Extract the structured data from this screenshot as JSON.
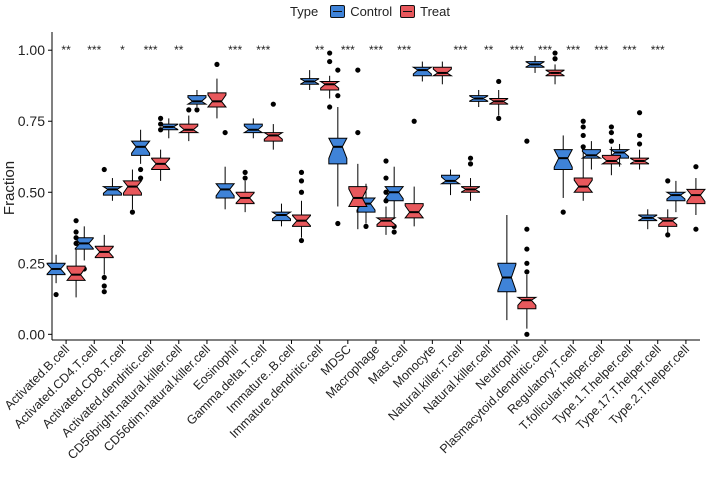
{
  "chart_data": {
    "type": "boxplot",
    "title": "",
    "xlabel": "",
    "ylabel": "Fraction",
    "ylim": [
      -0.02,
      1.05
    ],
    "yticks": [
      "0.00",
      "0.25",
      "0.50",
      "0.75",
      "1.00"
    ],
    "legend": {
      "title": "Type",
      "position": "top",
      "entries": [
        {
          "name": "Control",
          "color": "#3f83d8"
        },
        {
          "name": "Treat",
          "color": "#e8585c"
        }
      ]
    },
    "categories": [
      "Activated.B.cell",
      "Activated.CD4.T.cell",
      "Activated.CD8.T.cell",
      "Activated.dendritic.cell",
      "CD56bright.natural.killer.cell",
      "CD56dim.natural.killer.cell",
      "Eosinophil",
      "Gamma.delta.T.cell",
      "Immature..B.cell",
      "Immature.dendritic.cell",
      "MDSC",
      "Macrophage",
      "Mast.cell",
      "Monocyte",
      "Natural.killer.T.cell",
      "Natural.killer.cell",
      "Neutrophil",
      "Plasmacytoid.dendritic.cell",
      "Regulatory.T.cell",
      "T.follicular.helper.cell",
      "Type.1.T.helper.cell",
      "Type.17.T.helper.cell",
      "Type.2.T.helper.cell"
    ],
    "significance": [
      "**",
      "***",
      "*",
      "***",
      "**",
      "",
      "***",
      "***",
      "",
      "**",
      "***",
      "***",
      "***",
      "",
      "***",
      "**",
      "***",
      "***",
      "***",
      "***",
      "***",
      "***",
      ""
    ],
    "series": [
      {
        "name": "Control",
        "boxes": [
          {
            "min": 0.18,
            "q1": 0.21,
            "median": 0.23,
            "q3": 0.25,
            "max": 0.28,
            "outliers": [
              0.14
            ]
          },
          {
            "min": 0.26,
            "q1": 0.3,
            "median": 0.32,
            "q3": 0.34,
            "max": 0.38,
            "outliers": [
              0.23
            ]
          },
          {
            "min": 0.47,
            "q1": 0.49,
            "median": 0.51,
            "q3": 0.52,
            "max": 0.55,
            "outliers": []
          },
          {
            "min": 0.6,
            "q1": 0.63,
            "median": 0.66,
            "q3": 0.68,
            "max": 0.72,
            "outliers": [
              0.55,
              0.58
            ]
          },
          {
            "min": 0.69,
            "q1": 0.72,
            "median": 0.73,
            "q3": 0.74,
            "max": 0.76,
            "outliers": []
          },
          {
            "min": 0.8,
            "q1": 0.81,
            "median": 0.82,
            "q3": 0.84,
            "max": 0.86,
            "outliers": [
              0.79
            ]
          },
          {
            "min": 0.44,
            "q1": 0.48,
            "median": 0.51,
            "q3": 0.53,
            "max": 0.59,
            "outliers": [
              0.71
            ]
          },
          {
            "min": 0.69,
            "q1": 0.71,
            "median": 0.72,
            "q3": 0.74,
            "max": 0.76,
            "outliers": []
          },
          {
            "min": 0.38,
            "q1": 0.4,
            "median": 0.42,
            "q3": 0.43,
            "max": 0.46,
            "outliers": []
          },
          {
            "min": 0.86,
            "q1": 0.88,
            "median": 0.89,
            "q3": 0.9,
            "max": 0.93,
            "outliers": []
          },
          {
            "min": 0.45,
            "q1": 0.6,
            "median": 0.66,
            "q3": 0.69,
            "max": 0.8,
            "outliers": [
              0.84,
              0.93,
              0.39
            ]
          },
          {
            "min": 0.39,
            "q1": 0.43,
            "median": 0.46,
            "q3": 0.48,
            "max": 0.53,
            "outliers": [
              0.38
            ]
          },
          {
            "min": 0.41,
            "q1": 0.47,
            "median": 0.5,
            "q3": 0.52,
            "max": 0.59,
            "outliers": [
              0.38,
              0.36
            ]
          },
          {
            "min": 0.89,
            "q1": 0.91,
            "median": 0.93,
            "q3": 0.94,
            "max": 0.96,
            "outliers": []
          },
          {
            "min": 0.49,
            "q1": 0.53,
            "median": 0.54,
            "q3": 0.56,
            "max": 0.58,
            "outliers": []
          },
          {
            "min": 0.8,
            "q1": 0.82,
            "median": 0.83,
            "q3": 0.84,
            "max": 0.86,
            "outliers": []
          },
          {
            "min": 0.05,
            "q1": 0.15,
            "median": 0.2,
            "q3": 0.25,
            "max": 0.42,
            "outliers": []
          },
          {
            "min": 0.92,
            "q1": 0.94,
            "median": 0.95,
            "q3": 0.96,
            "max": 0.98,
            "outliers": []
          },
          {
            "min": 0.48,
            "q1": 0.58,
            "median": 0.62,
            "q3": 0.65,
            "max": 0.7,
            "outliers": [
              0.43
            ]
          },
          {
            "min": 0.58,
            "q1": 0.62,
            "median": 0.63,
            "q3": 0.65,
            "max": 0.68,
            "outliers": []
          },
          {
            "min": 0.59,
            "q1": 0.62,
            "median": 0.64,
            "q3": 0.65,
            "max": 0.67,
            "outliers": []
          },
          {
            "min": 0.37,
            "q1": 0.4,
            "median": 0.41,
            "q3": 0.42,
            "max": 0.44,
            "outliers": []
          },
          {
            "min": 0.43,
            "q1": 0.47,
            "median": 0.49,
            "q3": 0.5,
            "max": 0.54,
            "outliers": []
          }
        ]
      },
      {
        "name": "Treat",
        "boxes": [
          {
            "min": 0.13,
            "q1": 0.19,
            "median": 0.21,
            "q3": 0.24,
            "max": 0.3,
            "outliers": [
              0.32,
              0.34,
              0.36,
              0.4
            ]
          },
          {
            "min": 0.21,
            "q1": 0.27,
            "median": 0.29,
            "q3": 0.31,
            "max": 0.35,
            "outliers": [
              0.2,
              0.17,
              0.15,
              0.58
            ]
          },
          {
            "min": 0.44,
            "q1": 0.49,
            "median": 0.52,
            "q3": 0.54,
            "max": 0.58,
            "outliers": [
              0.43
            ]
          },
          {
            "min": 0.54,
            "q1": 0.58,
            "median": 0.6,
            "q3": 0.62,
            "max": 0.65,
            "outliers": [
              0.72,
              0.74,
              0.76
            ]
          },
          {
            "min": 0.68,
            "q1": 0.71,
            "median": 0.72,
            "q3": 0.74,
            "max": 0.77,
            "outliers": [
              0.79
            ]
          },
          {
            "min": 0.76,
            "q1": 0.8,
            "median": 0.82,
            "q3": 0.85,
            "max": 0.9,
            "outliers": [
              0.95
            ]
          },
          {
            "min": 0.43,
            "q1": 0.46,
            "median": 0.48,
            "q3": 0.5,
            "max": 0.54,
            "outliers": [
              0.57,
              0.55
            ]
          },
          {
            "min": 0.65,
            "q1": 0.68,
            "median": 0.7,
            "q3": 0.71,
            "max": 0.74,
            "outliers": [
              0.81
            ]
          },
          {
            "min": 0.34,
            "q1": 0.38,
            "median": 0.4,
            "q3": 0.42,
            "max": 0.47,
            "outliers": [
              0.33,
              0.5,
              0.54,
              0.57
            ]
          },
          {
            "min": 0.83,
            "q1": 0.86,
            "median": 0.88,
            "q3": 0.89,
            "max": 0.91,
            "outliers": [
              0.8,
              0.96,
              0.99
            ]
          },
          {
            "min": 0.37,
            "q1": 0.45,
            "median": 0.48,
            "q3": 0.52,
            "max": 0.6,
            "outliers": [
              0.71,
              0.93
            ]
          },
          {
            "min": 0.35,
            "q1": 0.38,
            "median": 0.4,
            "q3": 0.41,
            "max": 0.45,
            "outliers": [
              0.47,
              0.5,
              0.55,
              0.61
            ]
          },
          {
            "min": 0.38,
            "q1": 0.41,
            "median": 0.43,
            "q3": 0.46,
            "max": 0.52,
            "outliers": [
              0.75
            ]
          },
          {
            "min": 0.88,
            "q1": 0.91,
            "median": 0.92,
            "q3": 0.94,
            "max": 0.96,
            "outliers": []
          },
          {
            "min": 0.47,
            "q1": 0.5,
            "median": 0.51,
            "q3": 0.52,
            "max": 0.55,
            "outliers": [
              0.6,
              0.62
            ]
          },
          {
            "min": 0.77,
            "q1": 0.81,
            "median": 0.82,
            "q3": 0.83,
            "max": 0.86,
            "outliers": [
              0.76,
              0.89
            ]
          },
          {
            "min": 0.02,
            "q1": 0.09,
            "median": 0.12,
            "q3": 0.13,
            "max": 0.21,
            "outliers": [
              0.0,
              0.22,
              0.25,
              0.3,
              0.37,
              0.68
            ]
          },
          {
            "min": 0.88,
            "q1": 0.91,
            "median": 0.92,
            "q3": 0.93,
            "max": 0.95,
            "outliers": [
              0.97,
              0.99
            ]
          },
          {
            "min": 0.47,
            "q1": 0.5,
            "median": 0.52,
            "q3": 0.55,
            "max": 0.64,
            "outliers": [
              0.66,
              0.7,
              0.73,
              0.75
            ]
          },
          {
            "min": 0.56,
            "q1": 0.6,
            "median": 0.61,
            "q3": 0.63,
            "max": 0.66,
            "outliers": [
              0.68,
              0.71,
              0.73
            ]
          },
          {
            "min": 0.58,
            "q1": 0.6,
            "median": 0.61,
            "q3": 0.62,
            "max": 0.65,
            "outliers": [
              0.67,
              0.7,
              0.78
            ]
          },
          {
            "min": 0.35,
            "q1": 0.38,
            "median": 0.4,
            "q3": 0.41,
            "max": 0.44,
            "outliers": [
              0.35,
              0.54
            ]
          },
          {
            "min": 0.42,
            "q1": 0.46,
            "median": 0.49,
            "q3": 0.51,
            "max": 0.55,
            "outliers": [
              0.37,
              0.59
            ]
          }
        ]
      }
    ]
  }
}
